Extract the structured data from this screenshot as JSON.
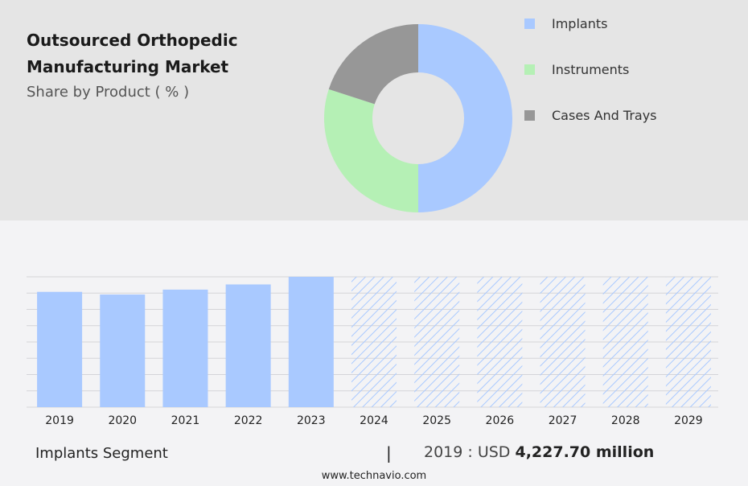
{
  "header": {
    "title": "Outsourced Orthopedic Manufacturing Market",
    "subtitle": "Share by Product ( % )"
  },
  "colors": {
    "implants": "#a9c9ff",
    "instruments": "#b5f0b5",
    "cases_and_trays": "#979797",
    "forecast_hatch": "#a9c9ff"
  },
  "chart_data": [
    {
      "type": "pie",
      "variant": "donut",
      "title": "Share by Product ( % )",
      "categories": [
        "Implants",
        "Instruments",
        "Cases And Trays"
      ],
      "values": [
        50,
        30,
        20
      ],
      "legend_position": "right"
    },
    {
      "type": "bar",
      "categories": [
        "2019",
        "2020",
        "2021",
        "2022",
        "2023",
        "2024",
        "2025",
        "2026",
        "2027",
        "2028",
        "2029"
      ],
      "values": [
        4227.7,
        4130,
        4310,
        4500,
        4780,
        4780,
        4780,
        4780,
        4780,
        4780,
        4780
      ],
      "forecast": [
        false,
        false,
        false,
        false,
        false,
        true,
        true,
        true,
        true,
        true,
        true
      ],
      "ylim": [
        0,
        4780
      ],
      "grid": true,
      "xlabel": "",
      "ylabel": ""
    }
  ],
  "footer": {
    "segment_label": "Implants Segment",
    "separator": "|",
    "year_prefix": "2019 : USD ",
    "value_text": "4,227.70 million",
    "source": "www.technavio.com"
  }
}
